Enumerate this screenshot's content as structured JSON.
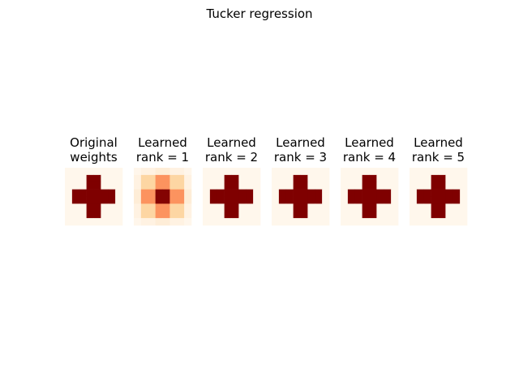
{
  "figure": {
    "title": "Tucker regression",
    "colormap": "OrRd",
    "colors": {
      "low": "#fff7ec",
      "mid_low": "#fdd49e",
      "mid": "#fc8d59",
      "mid_high": "#d7301f",
      "high": "#7f0000"
    }
  },
  "chart_data": [
    {
      "type": "heatmap",
      "title_lines": [
        "Original",
        "weights"
      ],
      "pattern": "cross",
      "value_range": [
        0,
        1
      ]
    },
    {
      "type": "heatmap",
      "title_lines": [
        "Learned",
        "rank = 1"
      ],
      "pattern": "blurred-cross",
      "value_range": [
        0,
        1
      ]
    },
    {
      "type": "heatmap",
      "title_lines": [
        "Learned",
        "rank = 2"
      ],
      "pattern": "cross",
      "value_range": [
        0,
        1
      ]
    },
    {
      "type": "heatmap",
      "title_lines": [
        "Learned",
        "rank = 3"
      ],
      "pattern": "cross",
      "value_range": [
        0,
        1
      ]
    },
    {
      "type": "heatmap",
      "title_lines": [
        "Learned",
        "rank = 4"
      ],
      "pattern": "cross",
      "value_range": [
        0,
        1
      ]
    },
    {
      "type": "heatmap",
      "title_lines": [
        "Learned",
        "rank = 5"
      ],
      "pattern": "cross",
      "value_range": [
        0,
        1
      ]
    }
  ]
}
